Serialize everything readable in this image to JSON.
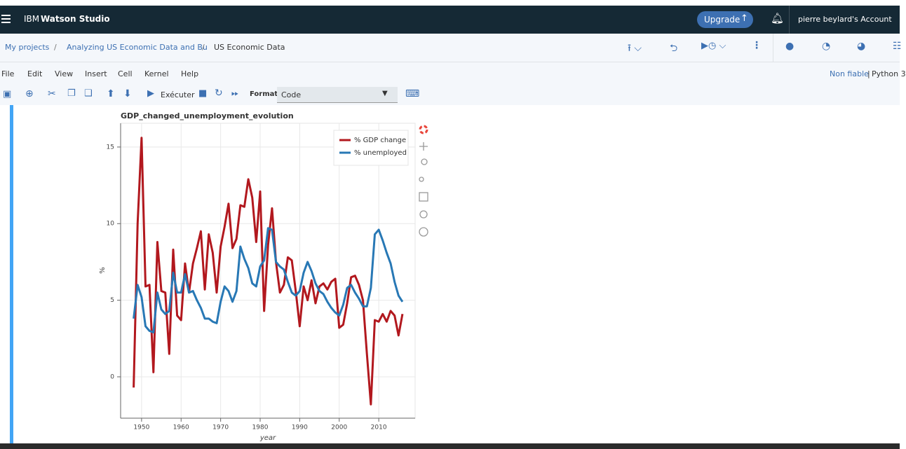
{
  "header": {
    "brand": "IBM",
    "product": "Watson Studio",
    "upgrade": "Upgrade",
    "account": "pierre beylard's Account"
  },
  "breadcrumb": {
    "items": [
      "My projects",
      "Analyzing US Economic Data and Bu",
      "US Economic Data"
    ],
    "separator": "/"
  },
  "menu": [
    "File",
    "Edit",
    "View",
    "Insert",
    "Cell",
    "Kernel",
    "Help"
  ],
  "kernel": {
    "trust": "Non fiable",
    "divider": "|",
    "name": "Python 3"
  },
  "toolbar": {
    "run": "Exécuter",
    "format_label": "Format",
    "cell_type": "Code"
  },
  "chart_data": {
    "type": "line",
    "title": "GDP_changed_unemployment_evolution",
    "x_label": "year",
    "y_label": "%",
    "x": [
      1948,
      1949,
      1950,
      1951,
      1952,
      1953,
      1954,
      1955,
      1956,
      1957,
      1958,
      1959,
      1960,
      1961,
      1962,
      1963,
      1964,
      1965,
      1966,
      1967,
      1968,
      1969,
      1970,
      1971,
      1972,
      1973,
      1974,
      1975,
      1976,
      1977,
      1978,
      1979,
      1980,
      1981,
      1982,
      1983,
      1984,
      1985,
      1986,
      1987,
      1988,
      1989,
      1990,
      1991,
      1992,
      1993,
      1994,
      1995,
      1996,
      1997,
      1998,
      1999,
      2000,
      2001,
      2002,
      2003,
      2004,
      2005,
      2006,
      2007,
      2008,
      2009,
      2010,
      2011,
      2012,
      2013,
      2014,
      2015,
      2016
    ],
    "series": [
      {
        "name": "% GDP change",
        "color": "#b2181e",
        "values": [
          -0.7,
          10.0,
          15.6,
          5.9,
          6.0,
          0.3,
          8.8,
          5.6,
          5.5,
          1.5,
          8.3,
          4.0,
          3.7,
          7.4,
          5.5,
          7.4,
          8.4,
          9.5,
          5.7,
          9.3,
          8.1,
          5.5,
          8.5,
          9.8,
          11.3,
          8.4,
          9.0,
          11.2,
          11.1,
          12.9,
          11.7,
          8.8,
          12.1,
          4.3,
          8.6,
          11.0,
          7.5,
          5.5,
          6.0,
          7.8,
          7.6,
          5.6,
          3.3,
          5.9,
          5.0,
          6.3,
          4.8,
          5.9,
          6.1,
          5.7,
          6.2,
          6.4,
          3.2,
          3.4,
          4.8,
          6.5,
          6.6,
          6.0,
          5.0,
          1.5,
          -1.8,
          3.7,
          3.6,
          4.1,
          3.6,
          4.3,
          4.0,
          2.7,
          4.1
        ]
      },
      {
        "name": "% unemployed",
        "color": "#2878b5",
        "values": [
          3.8,
          6.0,
          5.2,
          3.3,
          3.0,
          2.9,
          5.5,
          4.4,
          4.1,
          4.3,
          6.8,
          5.5,
          5.5,
          6.7,
          5.5,
          5.6,
          5.0,
          4.5,
          3.8,
          3.8,
          3.6,
          3.5,
          4.9,
          5.9,
          5.6,
          4.9,
          5.6,
          8.5,
          7.7,
          7.1,
          6.1,
          5.9,
          7.2,
          7.6,
          9.7,
          9.6,
          7.5,
          7.2,
          7.0,
          6.2,
          5.5,
          5.3,
          5.6,
          6.8,
          7.5,
          6.9,
          6.1,
          5.6,
          5.4,
          4.9,
          4.5,
          4.2,
          4.0,
          4.7,
          5.8,
          6.0,
          5.5,
          5.1,
          4.6,
          4.6,
          5.8,
          9.3,
          9.6,
          8.9,
          8.1,
          7.4,
          6.2,
          5.3,
          4.9
        ]
      }
    ],
    "xlim": [
      1944.7,
      2019.2
    ],
    "ylim": [
      -2.7,
      16.55
    ],
    "xticks": [
      1950,
      1960,
      1970,
      1980,
      1990,
      2000,
      2010
    ],
    "yticks": [
      0,
      5,
      10,
      15
    ],
    "grid": true,
    "legend": "top-right"
  }
}
